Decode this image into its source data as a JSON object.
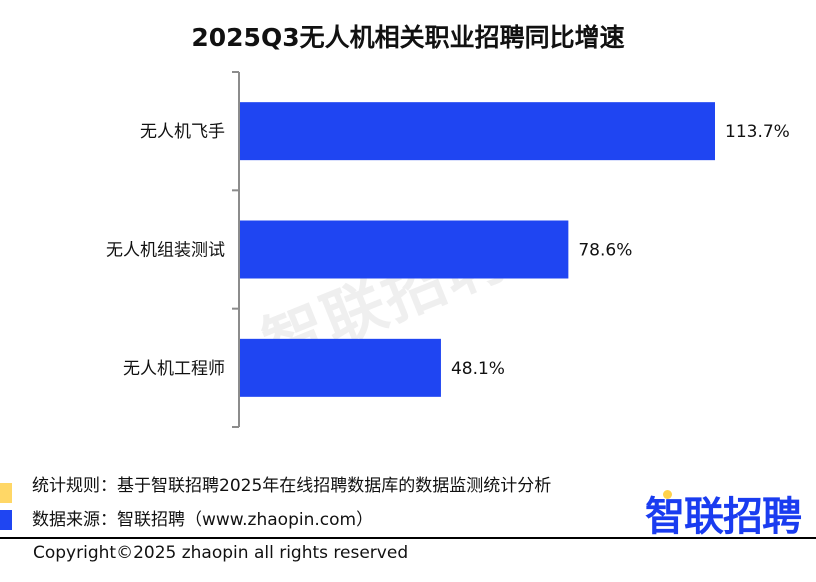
{
  "chart_data": {
    "type": "bar",
    "orientation": "horizontal",
    "title": "2025Q3无人机相关职业招聘同比增速",
    "categories": [
      "无人机飞手",
      "无人机组装测试",
      "无人机工程师"
    ],
    "values": [
      113.7,
      78.6,
      48.1
    ],
    "data_labels": [
      "113.7%",
      "78.6%",
      "48.1%"
    ],
    "xlabel": "",
    "ylabel": "",
    "xlim": [
      0,
      130
    ],
    "grid": false,
    "bar_color": "#1f45f2"
  },
  "watermark": "智联招聘",
  "notes": {
    "rule": "统计规则：基于智联招聘2025年在线招聘数据库的数据监测统计分析",
    "source": "数据来源：智联招聘（www.zhaopin.com）",
    "rule_marker_color": "#ffd766",
    "source_marker_color": "#1f45f2"
  },
  "logo": "智联招聘",
  "copyright": "Copyright©2025 zhaopin all rights reserved"
}
